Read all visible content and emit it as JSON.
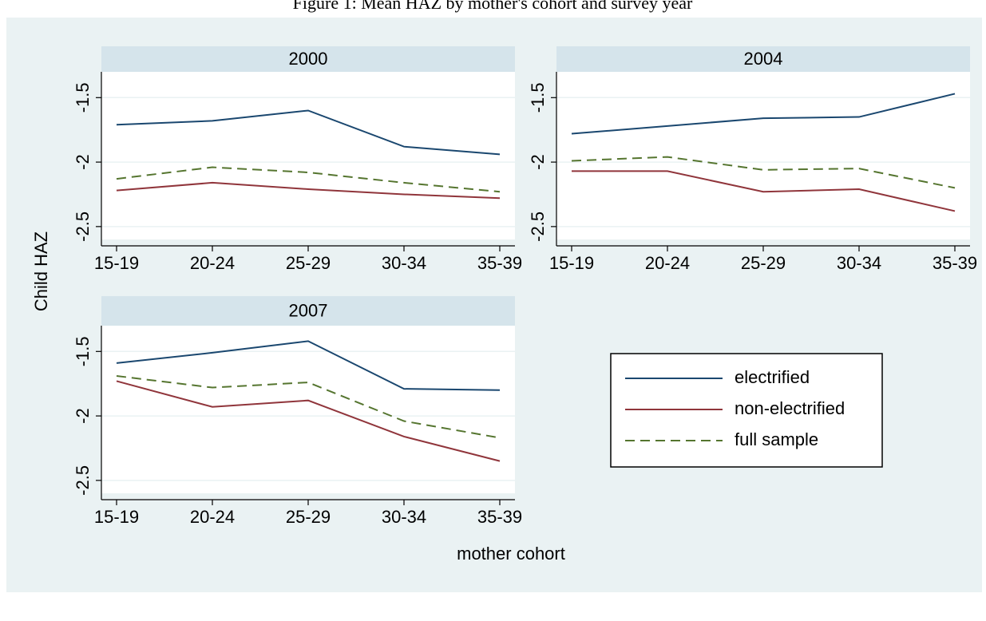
{
  "figure": {
    "title": "Figure 1: Mean HAZ by mother's cohort and survey year",
    "y_label": "Child HAZ",
    "x_label": "mother cohort"
  },
  "chart_data": [
    {
      "type": "line",
      "title": "2000",
      "categories": [
        "15-19",
        "20-24",
        "25-29",
        "30-34",
        "35-39"
      ],
      "ylim": [
        -2.6,
        -1.3
      ],
      "yticks": [
        -1.5,
        -2,
        -2.5
      ],
      "grid": true,
      "series": [
        {
          "name": "electrified",
          "color": "#1a476f",
          "values": [
            -1.71,
            -1.68,
            -1.6,
            -1.88,
            -1.94
          ]
        },
        {
          "name": "non-electrified",
          "color": "#90353b",
          "values": [
            -2.22,
            -2.16,
            -2.21,
            -2.25,
            -2.28
          ]
        },
        {
          "name": "full sample",
          "color": "#55752f",
          "dashed": true,
          "values": [
            -2.13,
            -2.04,
            -2.08,
            -2.16,
            -2.23
          ]
        }
      ]
    },
    {
      "type": "line",
      "title": "2004",
      "categories": [
        "15-19",
        "20-24",
        "25-29",
        "30-34",
        "35-39"
      ],
      "ylim": [
        -2.6,
        -1.3
      ],
      "yticks": [
        -1.5,
        -2,
        -2.5
      ],
      "grid": true,
      "series": [
        {
          "name": "electrified",
          "color": "#1a476f",
          "values": [
            -1.78,
            -1.72,
            -1.66,
            -1.65,
            -1.47
          ]
        },
        {
          "name": "non-electrified",
          "color": "#90353b",
          "values": [
            -2.07,
            -2.07,
            -2.23,
            -2.21,
            -2.38
          ]
        },
        {
          "name": "full sample",
          "color": "#55752f",
          "dashed": true,
          "values": [
            -1.99,
            -1.96,
            -2.06,
            -2.05,
            -2.2
          ]
        }
      ]
    },
    {
      "type": "line",
      "title": "2007",
      "categories": [
        "15-19",
        "20-24",
        "25-29",
        "30-34",
        "35-39"
      ],
      "ylim": [
        -2.6,
        -1.3
      ],
      "yticks": [
        -1.5,
        -2,
        -2.5
      ],
      "grid": true,
      "series": [
        {
          "name": "electrified",
          "color": "#1a476f",
          "values": [
            -1.59,
            -1.51,
            -1.42,
            -1.79,
            -1.8
          ]
        },
        {
          "name": "non-electrified",
          "color": "#90353b",
          "values": [
            -1.73,
            -1.93,
            -1.88,
            -2.16,
            -2.35
          ]
        },
        {
          "name": "full sample",
          "color": "#55752f",
          "dashed": true,
          "values": [
            -1.69,
            -1.78,
            -1.74,
            -2.04,
            -2.17
          ]
        }
      ]
    }
  ]
}
